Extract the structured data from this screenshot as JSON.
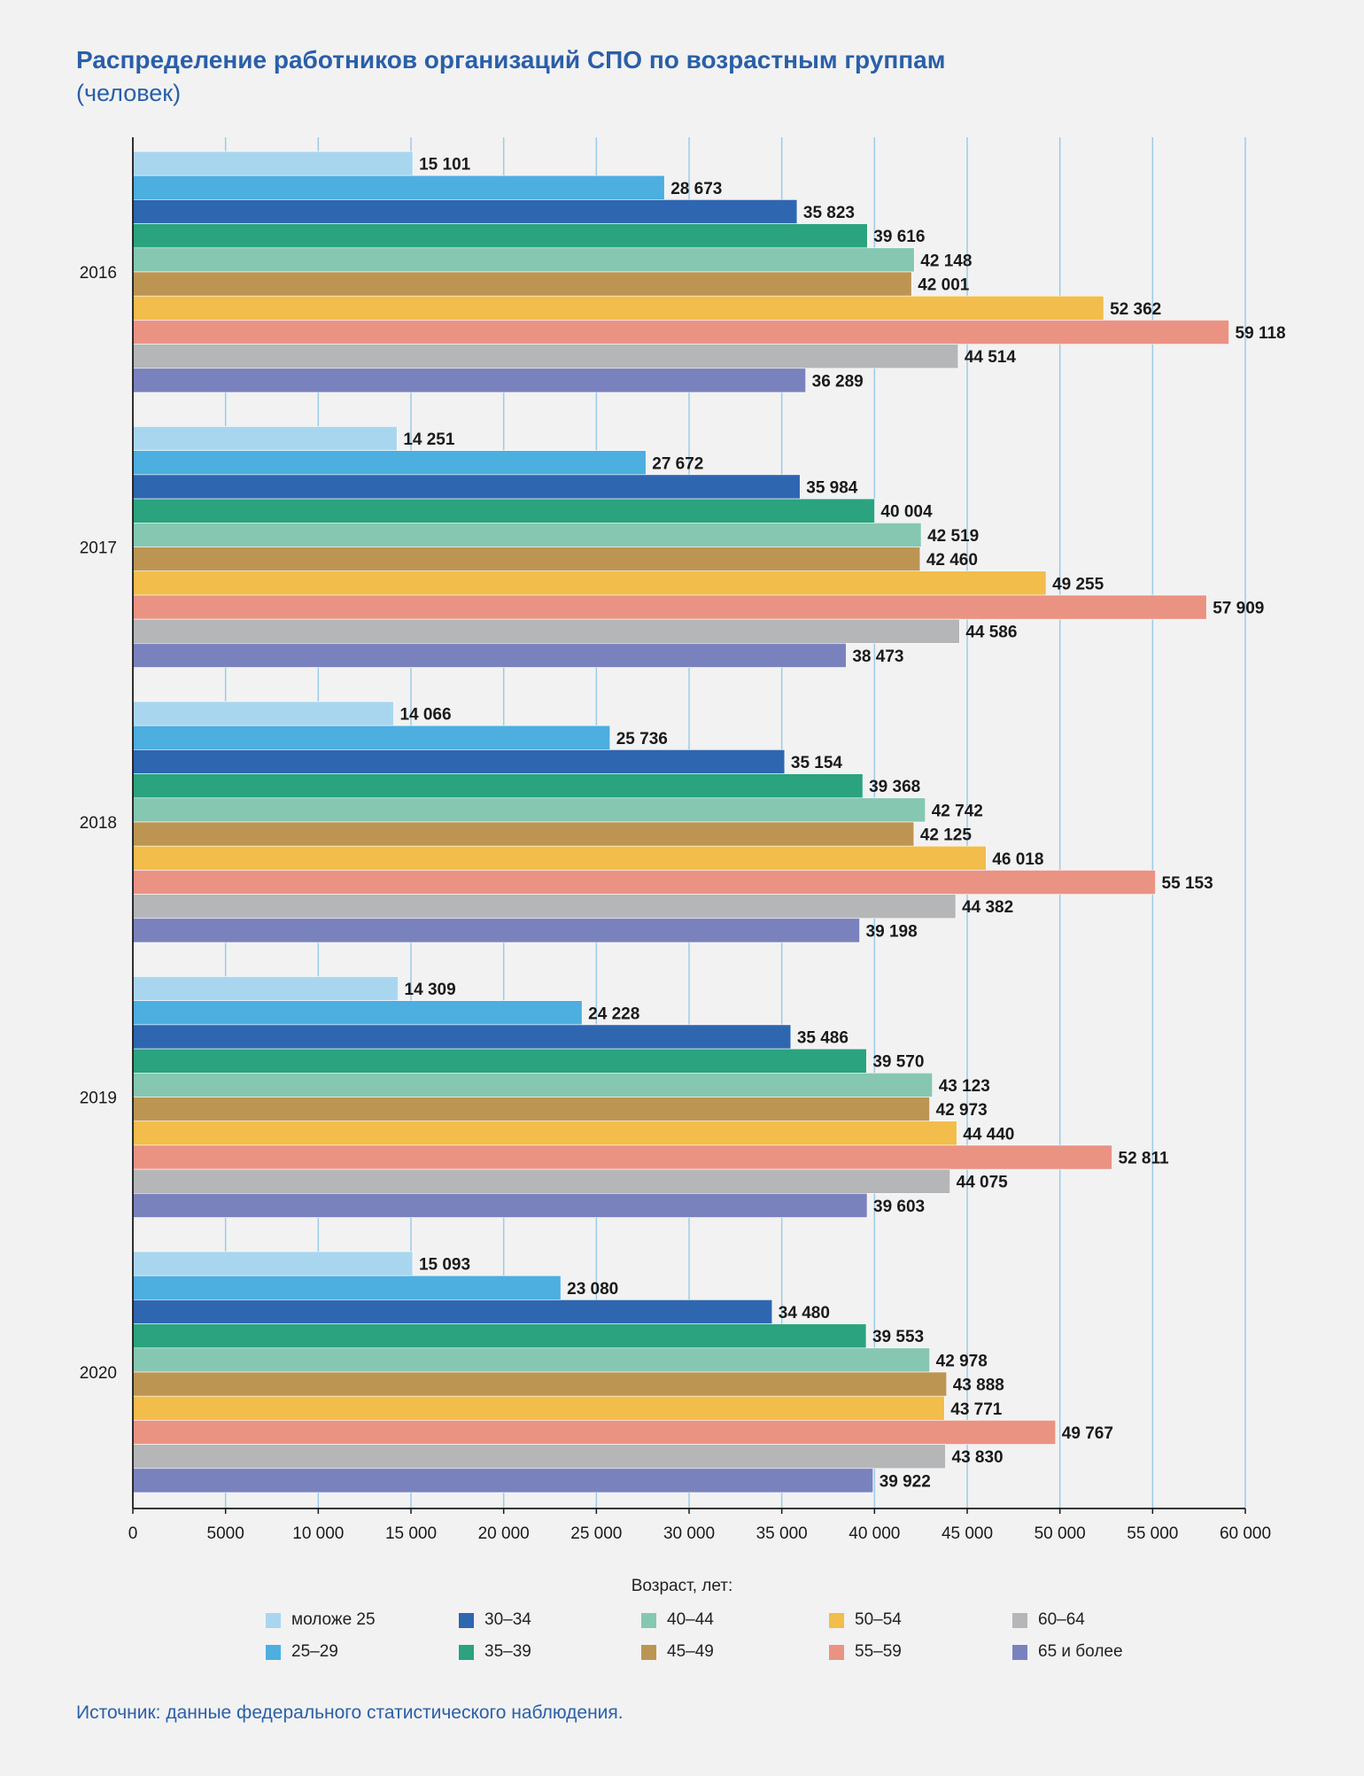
{
  "title": "Распределение работников организаций СПО по возрастным группам",
  "subtitle": "(человек)",
  "legend_title": "Возраст, лет:",
  "source": "Источник: данные федерального статистического наблюдения.",
  "chart_data": {
    "type": "bar",
    "orientation": "horizontal",
    "categories": [
      "2016",
      "2017",
      "2018",
      "2019",
      "2020"
    ],
    "xlim": [
      0,
      60000
    ],
    "xticks": [
      0,
      5000,
      10000,
      15000,
      20000,
      25000,
      30000,
      35000,
      40000,
      45000,
      50000,
      55000,
      60000
    ],
    "xtick_labels": [
      "0",
      "5000",
      "10 000",
      "15 000",
      "20 000",
      "25 000",
      "30 000",
      "35 000",
      "40 000",
      "45 000",
      "50 000",
      "55 000",
      "60 000"
    ],
    "grid": "vertical",
    "legend_position": "bottom",
    "series": [
      {
        "name": "моложе 25",
        "color": "#a9d6ef",
        "values": [
          15101,
          14251,
          14066,
          14309,
          15093
        ],
        "labels": [
          "15 101",
          "14 251",
          "14 066",
          "14 309",
          "15 093"
        ]
      },
      {
        "name": "25–29",
        "color": "#4daee0",
        "values": [
          28673,
          27672,
          25736,
          24228,
          23080
        ],
        "labels": [
          "28 673",
          "27 672",
          "25 736",
          "24 228",
          "23 080"
        ]
      },
      {
        "name": "30–34",
        "color": "#2f66b0",
        "values": [
          35823,
          35984,
          35154,
          35486,
          34480
        ],
        "labels": [
          "35 823",
          "35 984",
          "35 154",
          "35 486",
          "34 480"
        ]
      },
      {
        "name": "35–39",
        "color": "#2aa37e",
        "values": [
          39616,
          40004,
          39368,
          39570,
          39553
        ],
        "labels": [
          "39 616",
          "40 004",
          "39 368",
          "39 570",
          "39 553"
        ]
      },
      {
        "name": "40–44",
        "color": "#86c7b2",
        "values": [
          42148,
          42519,
          42742,
          43123,
          42978
        ],
        "labels": [
          "42 148",
          "42 519",
          "42 742",
          "43 123",
          "42 978"
        ]
      },
      {
        "name": "45–49",
        "color": "#bd9552",
        "values": [
          42001,
          42460,
          42125,
          42973,
          43888
        ],
        "labels": [
          "42 001",
          "42 460",
          "42 125",
          "42 973",
          "43 888"
        ]
      },
      {
        "name": "50–54",
        "color": "#f2bd4b",
        "values": [
          52362,
          49255,
          46018,
          44440,
          43771
        ],
        "labels": [
          "52 362",
          "49 255",
          "46 018",
          "44 440",
          "43 771"
        ]
      },
      {
        "name": "55–59",
        "color": "#ea9383",
        "values": [
          59118,
          57909,
          55153,
          52811,
          49767
        ],
        "labels": [
          "59 118",
          "57 909",
          "55 153",
          "52 811",
          "49 767"
        ]
      },
      {
        "name": "60–64",
        "color": "#b5b6b8",
        "values": [
          44514,
          44586,
          44382,
          44075,
          43830
        ],
        "labels": [
          "44 514",
          "44 586",
          "44 382",
          "44 075",
          "43 830"
        ]
      },
      {
        "name": "65 и более",
        "color": "#7a82be",
        "values": [
          36289,
          38473,
          39198,
          39603,
          39922
        ],
        "labels": [
          "36 289",
          "38 473",
          "39 198",
          "39 603",
          "39 922"
        ]
      }
    ]
  }
}
